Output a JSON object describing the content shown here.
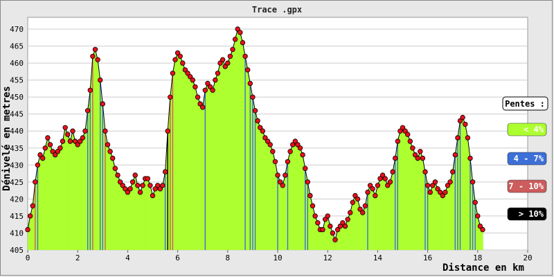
{
  "chart_data": {
    "type": "area",
    "title": "Trace .gpx",
    "xlabel": "Distance en km",
    "ylabel": "Dénivelé en metres",
    "xlim": [
      0,
      20
    ],
    "ylim": [
      405,
      470
    ],
    "xticks": [
      0,
      2,
      4,
      6,
      8,
      10,
      12,
      14,
      16,
      18,
      20
    ],
    "yticks": [
      405,
      410,
      415,
      420,
      425,
      430,
      435,
      440,
      445,
      450,
      455,
      460,
      465,
      470
    ],
    "grid": true,
    "legend": {
      "title": "Pentes :",
      "placement": "right",
      "items": [
        {
          "label": "< 4%",
          "color": "#adff2f",
          "text_color": "#ffffff"
        },
        {
          "label": "4 - 7%",
          "color": "#3c6fd8",
          "text_color": "#ffffff"
        },
        {
          "label": "7 - 10%",
          "color": "#cd5c5c",
          "text_color": "#ffffff"
        },
        {
          "label": "> 10%",
          "color": "#000000",
          "text_color": "#ffffff"
        }
      ]
    },
    "colors": {
      "fill": "#adff2f",
      "marker": "#e8101a",
      "grid": "#cccccc",
      "frame": "#e8e8e8"
    },
    "profile": [
      [
        0.0,
        411
      ],
      [
        0.1,
        415
      ],
      [
        0.2,
        418
      ],
      [
        0.3,
        425
      ],
      [
        0.4,
        430
      ],
      [
        0.5,
        433
      ],
      [
        0.6,
        432
      ],
      [
        0.7,
        435
      ],
      [
        0.8,
        438
      ],
      [
        0.9,
        436
      ],
      [
        1.0,
        434
      ],
      [
        1.1,
        433
      ],
      [
        1.2,
        434
      ],
      [
        1.3,
        435
      ],
      [
        1.4,
        437
      ],
      [
        1.5,
        441
      ],
      [
        1.6,
        439
      ],
      [
        1.7,
        437
      ],
      [
        1.8,
        440
      ],
      [
        1.9,
        437
      ],
      [
        2.0,
        436
      ],
      [
        2.1,
        437
      ],
      [
        2.2,
        438
      ],
      [
        2.3,
        440
      ],
      [
        2.4,
        446
      ],
      [
        2.5,
        452
      ],
      [
        2.6,
        462
      ],
      [
        2.7,
        464
      ],
      [
        2.8,
        461
      ],
      [
        2.9,
        455
      ],
      [
        3.0,
        448
      ],
      [
        3.1,
        440
      ],
      [
        3.2,
        436
      ],
      [
        3.3,
        434
      ],
      [
        3.4,
        432
      ],
      [
        3.5,
        429
      ],
      [
        3.6,
        427
      ],
      [
        3.7,
        425
      ],
      [
        3.8,
        424
      ],
      [
        3.9,
        423
      ],
      [
        4.0,
        422
      ],
      [
        4.1,
        423
      ],
      [
        4.2,
        425
      ],
      [
        4.3,
        427
      ],
      [
        4.4,
        424
      ],
      [
        4.5,
        422
      ],
      [
        4.6,
        424
      ],
      [
        4.7,
        426
      ],
      [
        4.8,
        426
      ],
      [
        4.9,
        424
      ],
      [
        5.0,
        421
      ],
      [
        5.1,
        423
      ],
      [
        5.2,
        424
      ],
      [
        5.3,
        423
      ],
      [
        5.4,
        424
      ],
      [
        5.5,
        428
      ],
      [
        5.6,
        440
      ],
      [
        5.7,
        450
      ],
      [
        5.8,
        457
      ],
      [
        5.9,
        461
      ],
      [
        6.0,
        463
      ],
      [
        6.1,
        462
      ],
      [
        6.2,
        460
      ],
      [
        6.3,
        458
      ],
      [
        6.4,
        457
      ],
      [
        6.5,
        456
      ],
      [
        6.6,
        455
      ],
      [
        6.7,
        453
      ],
      [
        6.8,
        450
      ],
      [
        6.9,
        448
      ],
      [
        7.0,
        447
      ],
      [
        7.1,
        452
      ],
      [
        7.2,
        454
      ],
      [
        7.3,
        453
      ],
      [
        7.4,
        452
      ],
      [
        7.5,
        455
      ],
      [
        7.6,
        457
      ],
      [
        7.7,
        460
      ],
      [
        7.8,
        461
      ],
      [
        7.9,
        459
      ],
      [
        8.0,
        460
      ],
      [
        8.1,
        462
      ],
      [
        8.2,
        464
      ],
      [
        8.3,
        467
      ],
      [
        8.4,
        470
      ],
      [
        8.5,
        469
      ],
      [
        8.6,
        466
      ],
      [
        8.7,
        462
      ],
      [
        8.8,
        458
      ],
      [
        8.9,
        454
      ],
      [
        9.0,
        450
      ],
      [
        9.1,
        446
      ],
      [
        9.2,
        443
      ],
      [
        9.3,
        441
      ],
      [
        9.4,
        440
      ],
      [
        9.5,
        438
      ],
      [
        9.6,
        437
      ],
      [
        9.7,
        436
      ],
      [
        9.8,
        434
      ],
      [
        9.9,
        431
      ],
      [
        10.0,
        427
      ],
      [
        10.1,
        425
      ],
      [
        10.2,
        424
      ],
      [
        10.3,
        427
      ],
      [
        10.4,
        431
      ],
      [
        10.5,
        434
      ],
      [
        10.6,
        436
      ],
      [
        10.7,
        437
      ],
      [
        10.8,
        436
      ],
      [
        10.9,
        435
      ],
      [
        11.0,
        433
      ],
      [
        11.1,
        429
      ],
      [
        11.2,
        425
      ],
      [
        11.3,
        421
      ],
      [
        11.4,
        418
      ],
      [
        11.5,
        415
      ],
      [
        11.6,
        413
      ],
      [
        11.7,
        411
      ],
      [
        11.8,
        411
      ],
      [
        11.9,
        414
      ],
      [
        12.0,
        415
      ],
      [
        12.1,
        412
      ],
      [
        12.2,
        410
      ],
      [
        12.3,
        408
      ],
      [
        12.4,
        411
      ],
      [
        12.5,
        412
      ],
      [
        12.6,
        413
      ],
      [
        12.7,
        412
      ],
      [
        12.8,
        414
      ],
      [
        12.9,
        416
      ],
      [
        13.0,
        419
      ],
      [
        13.1,
        421
      ],
      [
        13.2,
        420
      ],
      [
        13.3,
        417
      ],
      [
        13.4,
        416
      ],
      [
        13.5,
        418
      ],
      [
        13.6,
        422
      ],
      [
        13.7,
        424
      ],
      [
        13.8,
        423
      ],
      [
        13.9,
        421
      ],
      [
        14.0,
        424
      ],
      [
        14.1,
        426
      ],
      [
        14.2,
        427
      ],
      [
        14.3,
        426
      ],
      [
        14.4,
        424
      ],
      [
        14.5,
        425
      ],
      [
        14.6,
        428
      ],
      [
        14.7,
        432
      ],
      [
        14.8,
        437
      ],
      [
        14.9,
        440
      ],
      [
        15.0,
        441
      ],
      [
        15.1,
        440
      ],
      [
        15.2,
        439
      ],
      [
        15.3,
        437
      ],
      [
        15.4,
        435
      ],
      [
        15.5,
        433
      ],
      [
        15.6,
        432
      ],
      [
        15.7,
        434
      ],
      [
        15.8,
        432
      ],
      [
        15.9,
        428
      ],
      [
        16.0,
        424
      ],
      [
        16.1,
        422
      ],
      [
        16.2,
        424
      ],
      [
        16.3,
        425
      ],
      [
        16.4,
        423
      ],
      [
        16.5,
        422
      ],
      [
        16.6,
        421
      ],
      [
        16.7,
        422
      ],
      [
        16.8,
        424
      ],
      [
        16.9,
        425
      ],
      [
        17.0,
        428
      ],
      [
        17.1,
        433
      ],
      [
        17.2,
        438
      ],
      [
        17.3,
        443
      ],
      [
        17.4,
        444
      ],
      [
        17.5,
        442
      ],
      [
        17.6,
        438
      ],
      [
        17.7,
        432
      ],
      [
        17.8,
        425
      ],
      [
        17.9,
        419
      ],
      [
        18.0,
        415
      ],
      [
        18.1,
        412
      ],
      [
        18.2,
        411
      ]
    ]
  }
}
